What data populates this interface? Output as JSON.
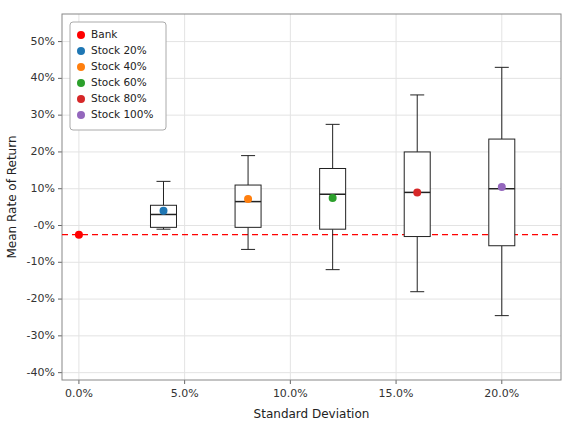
{
  "chart_data": {
    "type": "box",
    "xlabel": "Standard Deviation",
    "ylabel": "Mean Rate of Return",
    "series": [
      {
        "name": "Bank",
        "color": "#ff0000",
        "type": "scatter",
        "x": [
          0.0
        ],
        "values": [
          -0.025
        ]
      },
      {
        "name": "Stock 20%",
        "color": "#1f77b4",
        "type": "box",
        "x": [
          0.04
        ],
        "whisker_low": [
          -0.01
        ],
        "q1": [
          -0.005
        ],
        "median": [
          0.03
        ],
        "q3": [
          0.055
        ],
        "whisker_high": [
          0.12
        ],
        "values": [
          0.04
        ]
      },
      {
        "name": "Stock 40%",
        "color": "#ff7f0e",
        "type": "box",
        "x": [
          0.08
        ],
        "whisker_low": [
          -0.065
        ],
        "q1": [
          -0.005
        ],
        "median": [
          0.065
        ],
        "q3": [
          0.11
        ],
        "whisker_high": [
          0.19
        ],
        "values": [
          0.072
        ]
      },
      {
        "name": "Stock 60%",
        "color": "#2ca02c",
        "type": "box",
        "x": [
          0.12
        ],
        "whisker_low": [
          -0.12
        ],
        "q1": [
          -0.01
        ],
        "median": [
          0.085
        ],
        "q3": [
          0.155
        ],
        "whisker_high": [
          0.275
        ],
        "values": [
          0.075
        ]
      },
      {
        "name": "Stock 80%",
        "color": "#d62728",
        "type": "box",
        "x": [
          0.16
        ],
        "whisker_low": [
          -0.18
        ],
        "q1": [
          -0.03
        ],
        "median": [
          0.09
        ],
        "q3": [
          0.2
        ],
        "whisker_high": [
          0.355
        ],
        "values": [
          0.09
        ]
      },
      {
        "name": "Stock 100%",
        "color": "#9467bd",
        "type": "box",
        "x": [
          0.2
        ],
        "whisker_low": [
          -0.245
        ],
        "q1": [
          -0.055
        ],
        "median": [
          0.1
        ],
        "q3": [
          0.235
        ],
        "whisker_high": [
          0.43
        ],
        "values": [
          0.105
        ]
      }
    ],
    "reference_lines": [
      {
        "y": -0.025,
        "color": "#ff0000",
        "line_style": "dashed"
      }
    ],
    "xlim": [
      -0.008,
      0.228
    ],
    "ylim": [
      -0.42,
      0.575
    ],
    "xticks": [
      {
        "value": 0.0,
        "label": "0.0%"
      },
      {
        "value": 0.05,
        "label": "5.0%"
      },
      {
        "value": 0.1,
        "label": "10.0%"
      },
      {
        "value": 0.15,
        "label": "15.0%"
      },
      {
        "value": 0.2,
        "label": "20.0%"
      }
    ],
    "yticks": [
      {
        "value": -0.4,
        "label": "-40%"
      },
      {
        "value": -0.3,
        "label": "-30%"
      },
      {
        "value": -0.2,
        "label": "-20%"
      },
      {
        "value": -0.1,
        "label": "-10%"
      },
      {
        "value": 0.0,
        "label": "-0%"
      },
      {
        "value": 0.1,
        "label": "10%"
      },
      {
        "value": 0.2,
        "label": "20%"
      },
      {
        "value": 0.3,
        "label": "30%"
      },
      {
        "value": 0.4,
        "label": "40%"
      },
      {
        "value": 0.5,
        "label": "50%"
      }
    ],
    "grid": true,
    "legend": "upper left"
  }
}
